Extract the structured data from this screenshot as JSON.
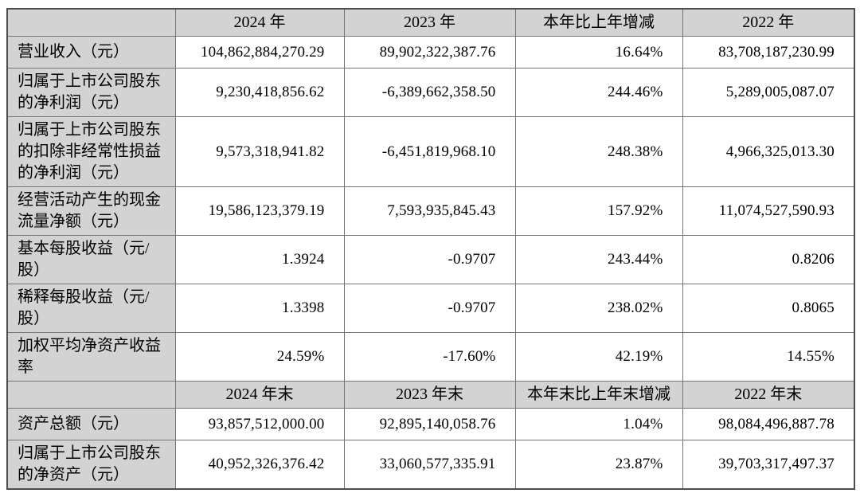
{
  "colors": {
    "header_bg": "#d3d3d3",
    "label_bg": "#d3d3d3",
    "cell_bg": "#ffffff",
    "border_inner": "#757575",
    "border_outer": "#4d4d4d",
    "text": "#000000"
  },
  "table": {
    "sections": [
      {
        "header": [
          "",
          "2024 年",
          "2023 年",
          "本年比上年增减",
          "2022 年"
        ],
        "rows": [
          {
            "label": "营业收入（元）",
            "values": [
              "104,862,884,270.29",
              "89,902,322,387.76",
              "16.64%",
              "83,708,187,230.99"
            ]
          },
          {
            "label": "归属于上市公司股东\n的净利润（元）",
            "values": [
              "9,230,418,856.62",
              "-6,389,662,358.50",
              "244.46%",
              "5,289,005,087.07"
            ]
          },
          {
            "label": "归属于上市公司股东\n的扣除非经常性损益\n的净利润（元）",
            "values": [
              "9,573,318,941.82",
              "-6,451,819,968.10",
              "248.38%",
              "4,966,325,013.30"
            ]
          },
          {
            "label": "经营活动产生的现金\n流量净额（元）",
            "values": [
              "19,586,123,379.19",
              "7,593,935,845.43",
              "157.92%",
              "11,074,527,590.93"
            ]
          },
          {
            "label": "基本每股收益（元/\n股）",
            "values": [
              "1.3924",
              "-0.9707",
              "243.44%",
              "0.8206"
            ]
          },
          {
            "label": "稀释每股收益（元/\n股）",
            "values": [
              "1.3398",
              "-0.9707",
              "238.02%",
              "0.8065"
            ]
          },
          {
            "label": "加权平均净资产收益\n率",
            "values": [
              "24.59%",
              "-17.60%",
              "42.19%",
              "14.55%"
            ]
          }
        ]
      },
      {
        "header": [
          "",
          "2024 年末",
          "2023 年末",
          "本年末比上年末增减",
          "2022 年末"
        ],
        "rows": [
          {
            "label": "资产总额（元）",
            "values": [
              "93,857,512,000.00",
              "92,895,140,058.76",
              "1.04%",
              "98,084,496,887.78"
            ]
          },
          {
            "label": "归属于上市公司股东\n的净资产（元）",
            "values": [
              "40,952,326,376.42",
              "33,060,577,335.91",
              "23.87%",
              "39,703,317,497.37"
            ]
          }
        ]
      }
    ]
  }
}
